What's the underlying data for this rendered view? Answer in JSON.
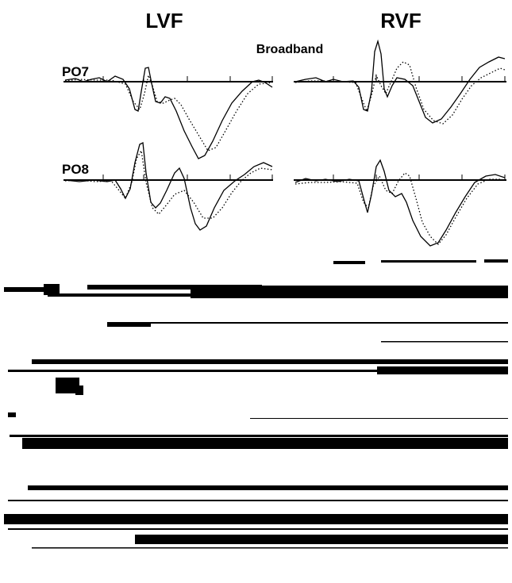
{
  "header": {
    "left_title": "LVF",
    "right_title": "RVF",
    "subtitle": "Broadband"
  },
  "rows": [
    {
      "label": "PO7"
    },
    {
      "label": "PO8"
    }
  ]
}
